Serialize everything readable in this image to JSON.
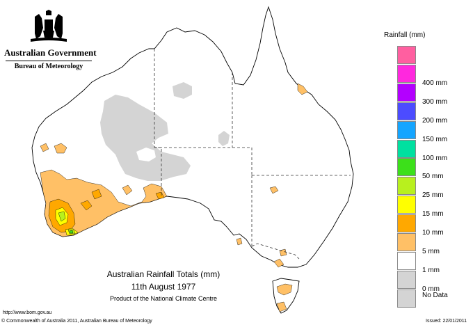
{
  "header": {
    "government": "Australian Government",
    "bureau": "Bureau of Meteorology"
  },
  "legend": {
    "title": "Rainfall (mm)",
    "bands": [
      {
        "label": "",
        "color": "#ff5fa0"
      },
      {
        "label": "400 mm",
        "color": "#ff28de"
      },
      {
        "label": "300 mm",
        "color": "#b300ff"
      },
      {
        "label": "200 mm",
        "color": "#4c4cff"
      },
      {
        "label": "150 mm",
        "color": "#14a5ff"
      },
      {
        "label": "100 mm",
        "color": "#00e0a0"
      },
      {
        "label": "50 mm",
        "color": "#3ce01a"
      },
      {
        "label": "25 mm",
        "color": "#b8f01e"
      },
      {
        "label": "15 mm",
        "color": "#ffff00"
      },
      {
        "label": "10 mm",
        "color": "#ffa800"
      },
      {
        "label": "5 mm",
        "color": "#ffc066"
      },
      {
        "label": "1 mm",
        "color": "#ffffff"
      },
      {
        "label": "0 mm",
        "color": "#d4d4d4"
      }
    ],
    "nodata_label": "No Data"
  },
  "map": {
    "title": "Australian Rainfall Totals (mm)",
    "date": "11th August 1977",
    "product": "Product of the National Climate Centre",
    "colors": {
      "land": "#ffffff",
      "outline": "#000000",
      "nodata": "#d4d4d4",
      "r1_5": "#ffc066",
      "r5_10": "#ffa800",
      "r10_15": "#ffff00",
      "r15_25": "#b8f01e",
      "r25_50": "#3ce01a"
    }
  },
  "footer": {
    "url": "http://www.bom.gov.au",
    "copyright": "© Commonwealth of Australia 2011, Australian Bureau of Meteorology",
    "issued": "Issued: 22/01/2011"
  }
}
